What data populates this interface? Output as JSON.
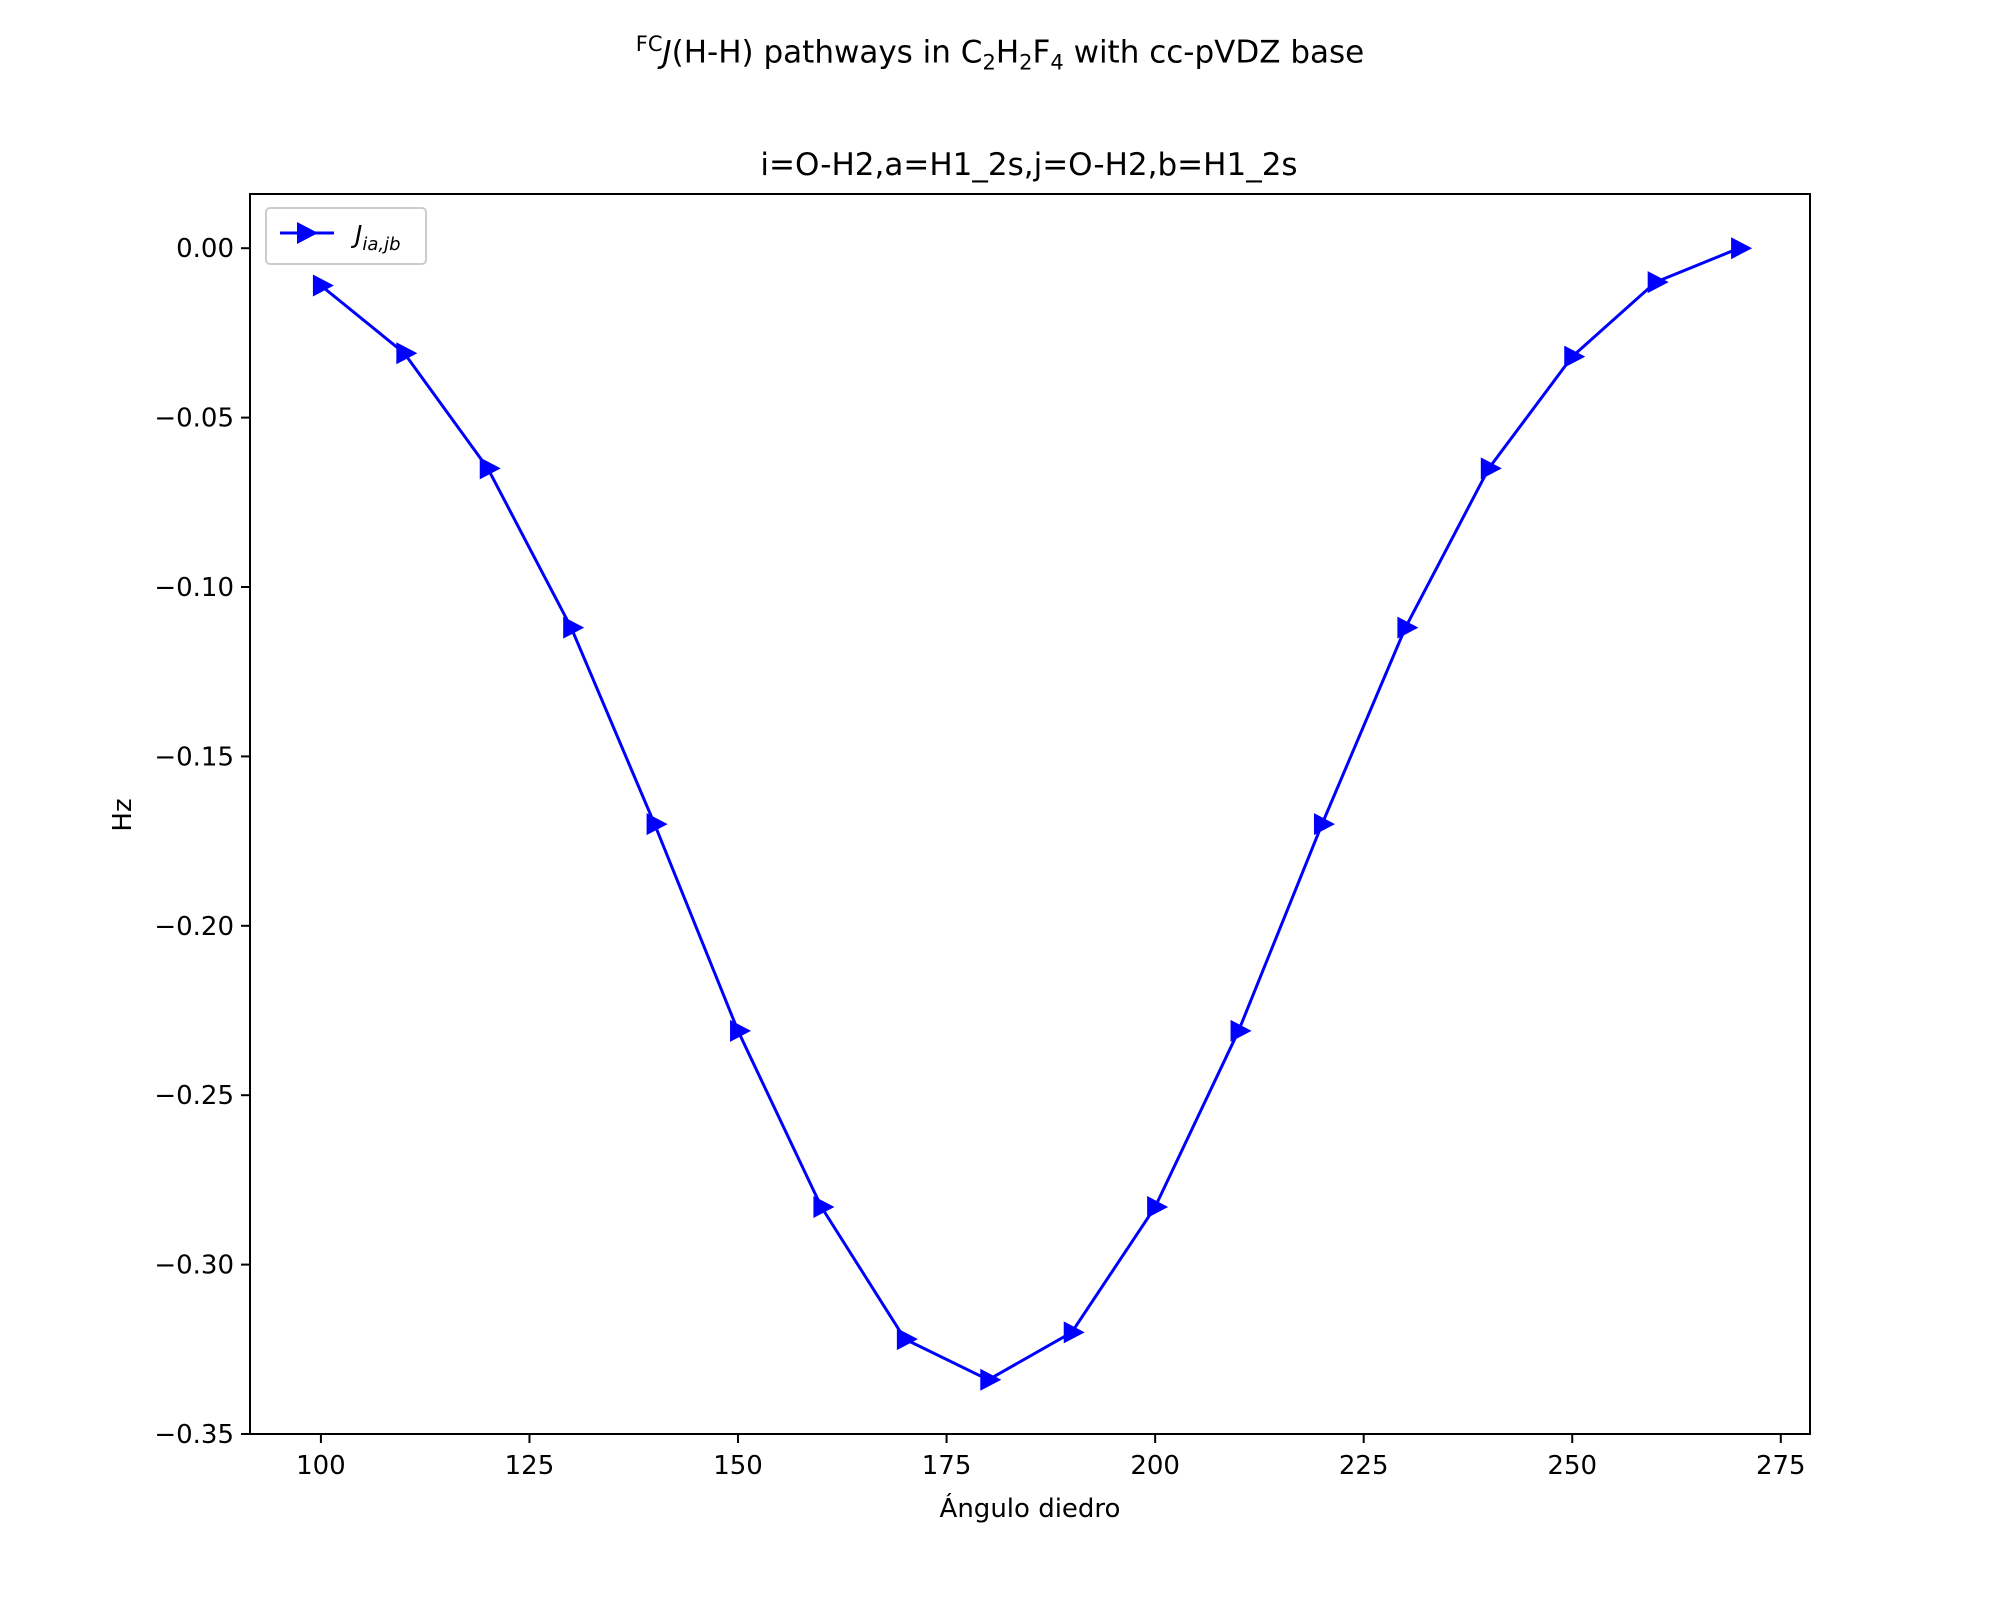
{
  "figure": {
    "suptitle": {
      "prefix_sup": "FC",
      "j_symbol": "J",
      "rest": "(H-H) pathways in C",
      "sub1": "2",
      "h": "H",
      "sub2": "2",
      "f": "F",
      "sub3": "4",
      "suffix": " with cc-pVDZ base"
    }
  },
  "chart_data": {
    "type": "line",
    "title": "i=O-H2,a=H1_2s,j=O-H2,b=H1_2s",
    "xlabel": "Ángulo diedro",
    "ylabel": "Hz",
    "xlim": [
      91.5,
      278.5
    ],
    "ylim": [
      -0.35,
      0.016
    ],
    "xticks": [
      100,
      125,
      150,
      175,
      200,
      225,
      250,
      275
    ],
    "yticks": [
      0.0,
      -0.05,
      -0.1,
      -0.15,
      -0.2,
      -0.25,
      -0.3,
      -0.35
    ],
    "ytick_labels": [
      "0.00",
      "−0.05",
      "−0.10",
      "−0.15",
      "−0.20",
      "−0.25",
      "−0.30",
      "−0.35"
    ],
    "grid": false,
    "legend_position": "top-left",
    "series": [
      {
        "name": "J_{ia,jb}",
        "legend_main": "J",
        "legend_sub": "ia,jb",
        "color": "#0000ff",
        "marker": "triangle-right",
        "x": [
          100,
          110,
          120,
          130,
          140,
          150,
          160,
          170,
          180,
          190,
          200,
          210,
          220,
          230,
          240,
          250,
          260,
          270
        ],
        "y": [
          -0.011,
          -0.031,
          -0.065,
          -0.112,
          -0.17,
          -0.231,
          -0.283,
          -0.322,
          -0.334,
          -0.32,
          -0.283,
          -0.231,
          -0.17,
          -0.112,
          -0.065,
          -0.032,
          -0.01,
          0.0
        ]
      }
    ]
  }
}
